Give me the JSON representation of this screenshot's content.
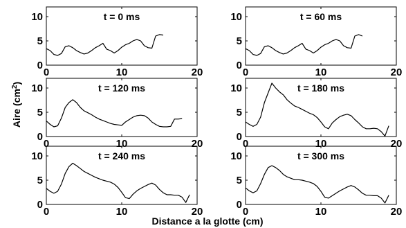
{
  "figure": {
    "xlabel": "Distance a la glotte (cm)",
    "ylabel_main": "Aire (cm",
    "ylabel_sup": "2",
    "ylabel_end": ")"
  },
  "chart_data": [
    {
      "type": "line",
      "title": "t = 0 ms",
      "xlim": [
        0,
        20
      ],
      "ylim": [
        0,
        12
      ],
      "xticks": [
        "0",
        "10",
        "20"
      ],
      "yticks": [
        "0",
        "5",
        "10"
      ],
      "series": [
        {
          "x": [
            0,
            0.5,
            1,
            1.5,
            2,
            2.5,
            3,
            3.5,
            4,
            4.5,
            5,
            5.5,
            6,
            6.5,
            7,
            7.5,
            8,
            8.5,
            9,
            9.5,
            10,
            10.5,
            11,
            11.5,
            12,
            12.5,
            13,
            13.5,
            14,
            14.5,
            15,
            15.5
          ],
          "y": [
            3.4,
            3,
            2.2,
            2,
            2.4,
            3.8,
            4,
            3.6,
            3,
            2.6,
            2.3,
            2.5,
            3,
            3.6,
            4,
            4.5,
            3.3,
            3,
            2.5,
            3,
            3.7,
            4.2,
            4.5,
            5,
            5.3,
            5,
            4,
            3.6,
            3.5,
            6,
            6.3,
            6.2
          ]
        }
      ]
    },
    {
      "type": "line",
      "title": "t = 60 ms",
      "xlim": [
        0,
        20
      ],
      "ylim": [
        0,
        12
      ],
      "xticks": [
        "0",
        "10",
        "20"
      ],
      "yticks": [
        "0",
        "5",
        "10"
      ],
      "series": [
        {
          "x": [
            0,
            0.5,
            1,
            1.5,
            2,
            2.5,
            3,
            3.5,
            4,
            4.5,
            5,
            5.5,
            6,
            6.5,
            7,
            7.5,
            8,
            8.5,
            9,
            9.5,
            10,
            10.5,
            11,
            11.5,
            12,
            12.5,
            13,
            13.5,
            14,
            14.5,
            15,
            15.5
          ],
          "y": [
            3.4,
            3,
            2.2,
            2,
            2.4,
            3.8,
            4,
            3.6,
            3,
            2.6,
            2.3,
            2.5,
            3,
            3.6,
            4,
            4.5,
            3.3,
            3,
            2.5,
            3,
            3.7,
            4.2,
            4.5,
            5,
            5.3,
            5,
            4,
            3.6,
            3.5,
            6,
            6.3,
            6
          ]
        }
      ]
    },
    {
      "type": "line",
      "title": "t = 120 ms",
      "xlim": [
        0,
        20
      ],
      "ylim": [
        0,
        12
      ],
      "xticks": [
        "0",
        "10",
        "20"
      ],
      "yticks": [
        "0",
        "5",
        "10"
      ],
      "series": [
        {
          "x": [
            0,
            0.5,
            1,
            1.5,
            2,
            2.5,
            3,
            3.5,
            4,
            4.5,
            5,
            5.5,
            6,
            6.5,
            7,
            7.5,
            8,
            8.5,
            9,
            9.5,
            10,
            10.5,
            11,
            11.5,
            12,
            12.5,
            13,
            13.5,
            14,
            14.5,
            15,
            15.5,
            16,
            16.5,
            17,
            17.5,
            18
          ],
          "y": [
            3.2,
            2.5,
            2,
            2.2,
            3.8,
            6,
            7,
            7.6,
            7,
            6,
            5.3,
            4.9,
            4.5,
            4,
            3.6,
            3.3,
            3,
            2.7,
            2.5,
            2.4,
            2.3,
            3,
            3.5,
            4,
            4.3,
            4.4,
            4.3,
            3.8,
            3,
            2.5,
            2.1,
            2,
            2,
            2.1,
            3.6,
            3.6,
            3.7
          ]
        }
      ]
    },
    {
      "type": "line",
      "title": "t = 180 ms",
      "xlim": [
        0,
        20
      ],
      "ylim": [
        0,
        12
      ],
      "xticks": [
        "0",
        "10",
        "20"
      ],
      "yticks": [
        "0",
        "5",
        "10"
      ],
      "series": [
        {
          "x": [
            0,
            0.5,
            1,
            1.5,
            2,
            2.5,
            3,
            3.5,
            4,
            4.5,
            5,
            5.5,
            6,
            6.5,
            7,
            7.5,
            8,
            8.5,
            9,
            9.5,
            10,
            10.5,
            11,
            11.5,
            12,
            12.5,
            13,
            13.5,
            14,
            14.5,
            15,
            15.5,
            16,
            16.5,
            17,
            17.5,
            18,
            18.5,
            19
          ],
          "y": [
            3,
            2.5,
            2.1,
            2.5,
            4,
            7,
            9,
            11,
            10,
            9.2,
            8.6,
            7.6,
            6.9,
            6.3,
            6,
            5.6,
            5.2,
            4.8,
            4.5,
            3.9,
            3,
            2,
            1.6,
            2.8,
            3.5,
            4.1,
            4.4,
            4.6,
            4.3,
            3.5,
            2.8,
            2,
            1.6,
            1.6,
            1.7,
            1.6,
            1,
            0.1,
            2.2
          ]
        }
      ]
    },
    {
      "type": "line",
      "title": "t = 240 ms",
      "xlim": [
        0,
        20
      ],
      "ylim": [
        0,
        12
      ],
      "xticks": [
        "0",
        "10",
        "20"
      ],
      "yticks": [
        "0",
        "5",
        "10"
      ],
      "series": [
        {
          "x": [
            0,
            0.5,
            1,
            1.5,
            2,
            2.5,
            3,
            3.5,
            4,
            4.5,
            5,
            5.5,
            6,
            6.5,
            7,
            7.5,
            8,
            8.5,
            9,
            9.5,
            10,
            10.5,
            11,
            11.5,
            12,
            12.5,
            13,
            13.5,
            14,
            14.5,
            15,
            15.5,
            16,
            16.5,
            17,
            17.5,
            18,
            18.5,
            19
          ],
          "y": [
            3.3,
            2.7,
            2.3,
            2.7,
            4.2,
            6.4,
            7.8,
            8.5,
            8,
            7.4,
            6.8,
            6.4,
            6,
            5.6,
            5.3,
            5,
            4.8,
            4.6,
            4.2,
            3.5,
            2.5,
            1.4,
            1.2,
            2.1,
            2.8,
            3.3,
            3.7,
            4.1,
            4.4,
            4,
            3.1,
            2.4,
            2,
            2,
            1.9,
            1.9,
            1.5,
            0.4,
            2
          ]
        }
      ]
    },
    {
      "type": "line",
      "title": "t = 300 ms",
      "xlim": [
        0,
        20
      ],
      "ylim": [
        0,
        12
      ],
      "xticks": [
        "0",
        "10",
        "20"
      ],
      "yticks": [
        "0",
        "5",
        "10"
      ],
      "series": [
        {
          "x": [
            0,
            0.5,
            1,
            1.5,
            2,
            2.5,
            3,
            3.5,
            4,
            4.5,
            5,
            5.5,
            6,
            6.5,
            7,
            7.5,
            8,
            8.5,
            9,
            9.5,
            10,
            10.5,
            11,
            11.5,
            12,
            12.5,
            13,
            13.5,
            14,
            14.5,
            15,
            15.5,
            16,
            16.5,
            17,
            17.5,
            18,
            18.5,
            19
          ],
          "y": [
            3.4,
            2.8,
            2.4,
            2.8,
            4.3,
            6.2,
            7.6,
            8,
            7.6,
            7,
            6.2,
            5.7,
            5.4,
            5.1,
            5.1,
            5,
            4.8,
            4.6,
            4.3,
            3.7,
            2.7,
            1.5,
            1.3,
            1.8,
            2.3,
            2.8,
            3.2,
            3.6,
            3.9,
            3.6,
            3,
            2.3,
            1.9,
            1.9,
            1.8,
            1.8,
            1.3,
            0.3,
            1.9
          ]
        }
      ]
    }
  ]
}
